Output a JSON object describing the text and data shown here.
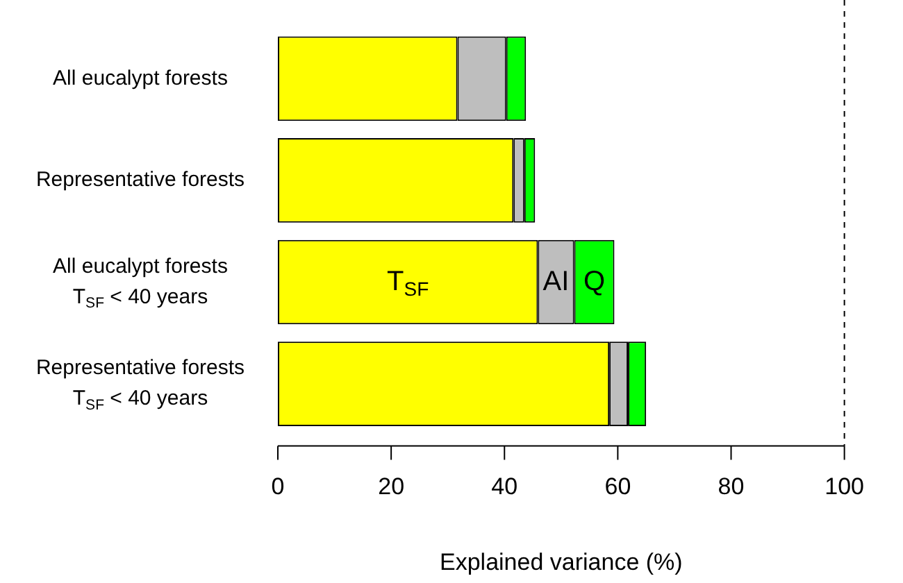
{
  "chart_data": {
    "type": "bar",
    "orientation": "horizontal",
    "stacked": true,
    "xlabel": "Explained variance (%)",
    "categories": [
      "All eucalypt forests",
      "Representative forests",
      "All eucalypt forests\nT$_{SF}$ < 40 years",
      "Representative forests\nT$_{SF}$ < 40 years"
    ],
    "series": [
      {
        "name": "T$_{SF}$",
        "color": "#ffff00",
        "values": [
          31.7,
          41.6,
          45.9,
          58.5
        ]
      },
      {
        "name": "AI",
        "color": "#bebebe",
        "values": [
          8.6,
          1.9,
          6.4,
          3.3
        ]
      },
      {
        "name": "Q",
        "color": "#00ff00",
        "values": [
          3.5,
          1.9,
          7.1,
          3.2
        ]
      }
    ],
    "xlim": [
      0,
      100
    ],
    "xticks": [
      0,
      20,
      40,
      60,
      80,
      100
    ],
    "ref_lines": [
      {
        "axis": "x",
        "value": 100,
        "line_style": "dashed"
      }
    ]
  }
}
